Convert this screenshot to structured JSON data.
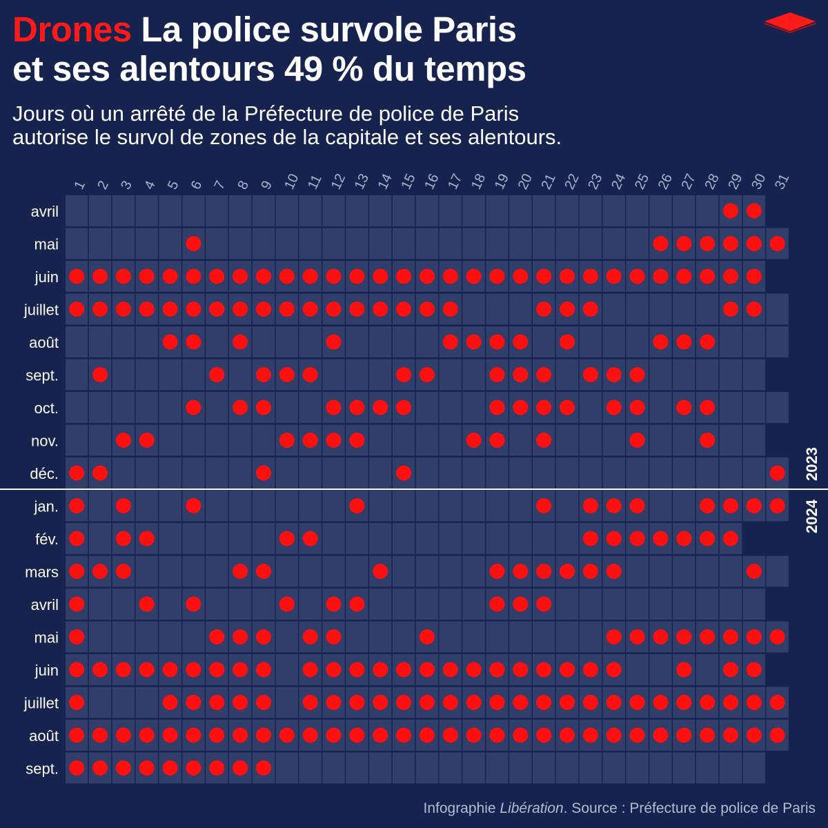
{
  "header": {
    "title_highlight": "Drones",
    "title_line1": "La police survole Paris",
    "title_line2": "et ses alentours 49 % du temps",
    "subtitle_line1": "Jours où un arrêté de la Préfecture de police de Paris",
    "subtitle_line2": "autorise le survol de zones de la capitale et ses alentours."
  },
  "footer": {
    "prefix": "Infographie ",
    "publication": "Libération",
    "suffix": ". Source : Préfecture de police de Paris"
  },
  "colors": {
    "background": "#16234f",
    "cell": "#323e6a",
    "dot": "#ff0f0f",
    "accent": "#ff1a1a"
  },
  "chart_data": {
    "type": "heatmap",
    "title": "Drones La police survole Paris et ses alentours 49 % du temps",
    "subtitle": "Jours où un arrêté de la Préfecture de police de Paris autorise le survol de zones de la capitale et ses alentours.",
    "x": [
      1,
      2,
      3,
      4,
      5,
      6,
      7,
      8,
      9,
      10,
      11,
      12,
      13,
      14,
      15,
      16,
      17,
      18,
      19,
      20,
      21,
      22,
      23,
      24,
      25,
      26,
      27,
      28,
      29,
      30,
      31
    ],
    "year_labels": [
      "2023",
      "2024"
    ],
    "source": "Préfecture de police de Paris",
    "months": [
      {
        "label": "avril",
        "year": "2023",
        "days": 30,
        "days_list": [
          29,
          30
        ]
      },
      {
        "label": "mai",
        "year": "2023",
        "days": 31,
        "days_list": [
          6,
          26,
          27,
          28,
          29,
          30,
          31
        ]
      },
      {
        "label": "juin",
        "year": "2023",
        "days": 30,
        "days_list": [
          1,
          2,
          3,
          4,
          5,
          6,
          7,
          8,
          9,
          10,
          11,
          12,
          13,
          14,
          15,
          16,
          17,
          18,
          19,
          20,
          21,
          22,
          23,
          24,
          25,
          26,
          27,
          28,
          29,
          30
        ]
      },
      {
        "label": "juillet",
        "year": "2023",
        "days": 31,
        "days_list": [
          1,
          2,
          3,
          4,
          5,
          6,
          7,
          8,
          9,
          10,
          11,
          12,
          13,
          14,
          15,
          16,
          17,
          21,
          22,
          23,
          29,
          30
        ]
      },
      {
        "label": "août",
        "year": "2023",
        "days": 31,
        "days_list": [
          5,
          6,
          8,
          12,
          17,
          18,
          19,
          20,
          22,
          26,
          27,
          28
        ]
      },
      {
        "label": "sept.",
        "year": "2023",
        "days": 30,
        "days_list": [
          2,
          7,
          9,
          10,
          11,
          15,
          16,
          19,
          20,
          21,
          23,
          24,
          25
        ]
      },
      {
        "label": "oct.",
        "year": "2023",
        "days": 31,
        "days_list": [
          6,
          8,
          9,
          12,
          13,
          14,
          15,
          19,
          20,
          21,
          22,
          24,
          25,
          27,
          28
        ]
      },
      {
        "label": "nov.",
        "year": "2023",
        "days": 30,
        "days_list": [
          3,
          4,
          10,
          11,
          12,
          13,
          18,
          19,
          21,
          25,
          28
        ]
      },
      {
        "label": "déc.",
        "year": "2023",
        "days": 31,
        "days_list": [
          1,
          2,
          9,
          15,
          31
        ]
      },
      {
        "label": "jan.",
        "year": "2024",
        "days": 31,
        "days_list": [
          1,
          3,
          6,
          13,
          21,
          23,
          24,
          25,
          28,
          29,
          30,
          31
        ]
      },
      {
        "label": "fév.",
        "year": "2024",
        "days": 29,
        "days_list": [
          1,
          3,
          4,
          10,
          11,
          23,
          24,
          25,
          26,
          27,
          28,
          29
        ]
      },
      {
        "label": "mars",
        "year": "2024",
        "days": 31,
        "days_list": [
          1,
          2,
          3,
          8,
          9,
          14,
          19,
          20,
          21,
          22,
          23,
          24,
          30
        ]
      },
      {
        "label": "avril",
        "year": "2024",
        "days": 30,
        "days_list": [
          1,
          4,
          6,
          10,
          12,
          13,
          19,
          20,
          21
        ]
      },
      {
        "label": "mai",
        "year": "2024",
        "days": 31,
        "days_list": [
          1,
          7,
          8,
          9,
          11,
          12,
          16,
          24,
          25,
          26,
          27,
          28,
          29,
          30,
          31
        ]
      },
      {
        "label": "juin",
        "year": "2024",
        "days": 30,
        "days_list": [
          1,
          2,
          3,
          4,
          5,
          6,
          7,
          8,
          9,
          11,
          12,
          13,
          14,
          15,
          16,
          17,
          18,
          19,
          20,
          21,
          22,
          23,
          24,
          27,
          29,
          30
        ]
      },
      {
        "label": "juillet",
        "year": "2024",
        "days": 31,
        "days_list": [
          1,
          5,
          6,
          7,
          8,
          9,
          11,
          12,
          13,
          14,
          15,
          16,
          17,
          18,
          19,
          20,
          21,
          22,
          23,
          24,
          25,
          26,
          27,
          28,
          29,
          30,
          31
        ]
      },
      {
        "label": "août",
        "year": "2024",
        "days": 31,
        "days_list": [
          1,
          2,
          3,
          4,
          5,
          6,
          7,
          8,
          9,
          10,
          11,
          12,
          13,
          14,
          15,
          16,
          17,
          18,
          19,
          20,
          21,
          22,
          23,
          24,
          25,
          26,
          27,
          28,
          29,
          30,
          31
        ]
      },
      {
        "label": "sept.",
        "year": "2024",
        "days": 30,
        "days_list": [
          1,
          2,
          3,
          4,
          5,
          6,
          7,
          8,
          9
        ]
      }
    ]
  }
}
